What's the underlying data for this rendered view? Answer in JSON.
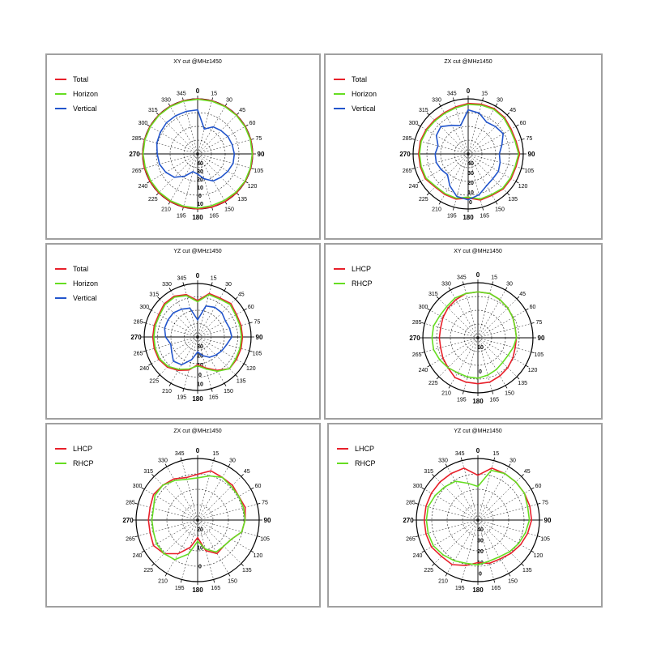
{
  "colors": {
    "total": "#e8202a",
    "horizon": "#66dd22",
    "vertical": "#2255cc",
    "lhcp": "#e8202a",
    "rhcp": "#66dd22"
  },
  "angle_labels": [
    "0",
    "15",
    "30",
    "45",
    "60",
    "75",
    "90",
    "105",
    "120",
    "135",
    "150",
    "165",
    "180",
    "195",
    "210",
    "225",
    "240",
    "265",
    "270",
    "285",
    "300",
    "315",
    "330",
    "345"
  ],
  "chart_data": [
    {
      "type": "polar-line",
      "title": "XY cut @MHz1450",
      "rlabels": [
        "40",
        "30",
        "20",
        "10",
        "0",
        "10"
      ],
      "series": [
        {
          "name": "Total",
          "color": "#e8202a",
          "values": [
            10,
            10,
            10,
            10,
            10,
            10,
            10,
            10,
            10,
            10,
            10,
            10,
            10,
            10,
            10,
            10,
            10,
            10,
            10,
            10,
            10,
            10,
            10,
            10
          ]
        },
        {
          "name": "Horizon",
          "color": "#66dd22",
          "values": [
            9.5,
            9.5,
            9.5,
            9.5,
            9.5,
            9.5,
            9.5,
            9.5,
            9.5,
            9,
            8.5,
            8.5,
            9,
            9,
            9,
            9,
            9,
            9,
            9.5,
            9.5,
            9.5,
            9.5,
            9.5,
            9.5
          ]
        },
        {
          "name": "Vertical",
          "color": "#2255cc",
          "values": [
            -2,
            -22,
            -16,
            -14,
            -12,
            -11,
            -10,
            -10,
            -12,
            -14,
            -16,
            -22,
            -28,
            -30,
            -22,
            -14,
            -10,
            -7,
            -6,
            -4,
            -3,
            -2,
            -2,
            -2
          ]
        }
      ]
    },
    {
      "type": "polar-line",
      "title": "ZX cut @MHz1450",
      "rlabels": [
        "40",
        "30",
        "20",
        "10",
        "0"
      ],
      "series": [
        {
          "name": "Total",
          "color": "#e8202a",
          "values": [
            5,
            6,
            7,
            6,
            4,
            4,
            6,
            4,
            4,
            4,
            2,
            2,
            -2,
            1,
            1,
            1,
            4,
            4,
            4,
            4,
            3,
            2,
            2,
            3
          ]
        },
        {
          "name": "Horizon",
          "color": "#66dd22",
          "values": [
            4,
            5,
            6,
            5,
            3,
            3,
            5,
            3,
            3,
            3,
            1,
            1,
            -3,
            0,
            0,
            0,
            3,
            3,
            3,
            3,
            2,
            1,
            1,
            2
          ]
        },
        {
          "name": "Vertical",
          "color": "#2255cc",
          "values": [
            -2,
            -4,
            -10,
            -8,
            -6,
            -12,
            -16,
            -14,
            -12,
            -12,
            -10,
            -4,
            0,
            -2,
            -10,
            -18,
            -16,
            -14,
            -14,
            -16,
            -10,
            -8,
            -14,
            -18
          ]
        }
      ]
    },
    {
      "type": "polar-line",
      "title": "YZ cut @MHz1450",
      "rlabels": [
        "30",
        "20",
        "10",
        "0",
        "10"
      ],
      "series": [
        {
          "name": "Total",
          "color": "#e8202a",
          "values": [
            -6,
            2,
            2,
            4,
            2,
            2,
            2,
            2,
            2,
            2,
            -4,
            -10,
            -14,
            -8,
            -4,
            0,
            2,
            2,
            2,
            2,
            2,
            4,
            4,
            1
          ]
        },
        {
          "name": "Horizon",
          "color": "#66dd22",
          "values": [
            -7,
            1,
            1,
            3,
            1,
            1,
            1,
            1,
            1,
            2,
            -3,
            -9,
            -13,
            -9,
            -5,
            -1,
            1,
            1,
            1,
            1,
            1,
            3,
            3,
            0
          ]
        },
        {
          "name": "Vertical",
          "color": "#2255cc",
          "values": [
            -24,
            -10,
            -8,
            -8,
            -10,
            -9,
            -8,
            -12,
            -14,
            -16,
            -18,
            -22,
            -26,
            -18,
            -10,
            -8,
            -12,
            -14,
            -10,
            -8,
            -8,
            -8,
            -10,
            -12
          ]
        }
      ]
    },
    {
      "type": "polar-line",
      "title": "XY cut @MHz1450",
      "rlabels": [
        "10",
        "0"
      ],
      "series": [
        {
          "name": "LHCP",
          "color": "#e8202a",
          "values": [
            0,
            0,
            -1,
            -2,
            -3,
            -4,
            -4,
            -4,
            -3,
            -2,
            -1,
            0,
            0,
            0,
            0,
            -2,
            -3,
            -4,
            -4,
            -4,
            -3,
            -2,
            -1,
            0
          ]
        },
        {
          "name": "RHCP",
          "color": "#66dd22",
          "values": [
            0,
            0,
            -1,
            -2,
            -3,
            -4,
            -4,
            -5,
            -6,
            -6,
            -5,
            -4,
            -3,
            -3,
            -3,
            -2,
            -1,
            0,
            0,
            0,
            -1,
            -1,
            0,
            0
          ]
        }
      ]
    },
    {
      "type": "polar-line",
      "title": "ZX cut @MHz1450",
      "rlabels": [
        "20",
        "10",
        "0"
      ],
      "series": [
        {
          "name": "LHCP",
          "color": "#e8202a",
          "values": [
            -4,
            -1,
            -2,
            -2,
            -3,
            -2,
            -3,
            -4,
            -8,
            -9,
            -8,
            -12,
            -20,
            -14,
            -8,
            -3,
            -1,
            -2,
            -2,
            -2,
            -1,
            -2,
            -3,
            -5
          ]
        },
        {
          "name": "RHCP",
          "color": "#66dd22",
          "values": [
            -6,
            -4,
            -2,
            -3,
            -3,
            -3,
            -3,
            -4,
            -8,
            -9,
            -9,
            -13,
            -18,
            -10,
            -4,
            -3,
            -3,
            -4,
            -4,
            -4,
            -2,
            -2,
            -4,
            -6
          ]
        }
      ]
    },
    {
      "type": "polar-line",
      "title": "YZ cut @MHz1450",
      "rlabels": [
        "40",
        "30",
        "20",
        "10",
        "0"
      ],
      "series": [
        {
          "name": "LHCP",
          "color": "#e8202a",
          "values": [
            -10,
            -2,
            -2,
            -2,
            -2,
            -2,
            -2,
            -4,
            -6,
            -8,
            -10,
            -10,
            -12,
            -8,
            -4,
            -4,
            -2,
            -2,
            -2,
            -2,
            -2,
            -2,
            -2,
            -2
          ]
        },
        {
          "name": "RHCP",
          "color": "#66dd22",
          "values": [
            -20,
            -4,
            -2,
            -2,
            -2,
            -4,
            -4,
            -6,
            -8,
            -10,
            -12,
            -12,
            -10,
            -10,
            -8,
            -6,
            -4,
            -4,
            -4,
            -4,
            -6,
            -8,
            -10,
            -16
          ]
        }
      ]
    }
  ]
}
